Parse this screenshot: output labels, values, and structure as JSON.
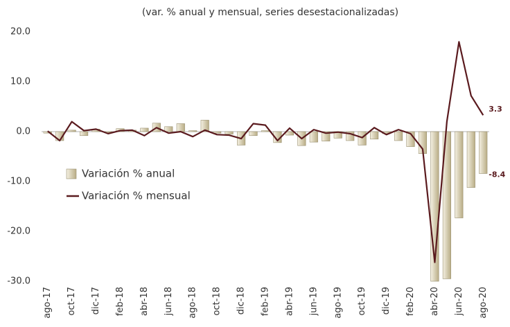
{
  "chart_data": {
    "type": "bar+line",
    "title": "(var. % anual y mensual, series desestacionalizadas)",
    "categories": [
      "ago-17",
      null,
      "oct-17",
      null,
      "dic-17",
      null,
      "feb-18",
      null,
      "abr-18",
      null,
      "jun-18",
      null,
      "ago-18",
      null,
      "oct-18",
      null,
      "dic-18",
      null,
      "feb-19",
      null,
      "abr-19",
      null,
      "jun-19",
      null,
      "ago-19",
      null,
      "oct-19",
      null,
      "dic-19",
      null,
      "feb-20",
      null,
      "abr-20",
      null,
      "jun-20",
      null,
      "ago-20"
    ],
    "series": [
      {
        "name": "Variación % anual",
        "type": "bar",
        "color": "#d9d0b2",
        "values": [
          -0.3,
          -1.8,
          0.3,
          -0.8,
          0.5,
          -0.2,
          0.6,
          0.3,
          0.7,
          1.7,
          1.0,
          1.6,
          0.2,
          2.3,
          -0.3,
          -0.5,
          -2.7,
          -0.8,
          0.2,
          -2.2,
          -0.7,
          -2.8,
          -2.1,
          -1.9,
          -1.3,
          -1.8,
          -2.7,
          -1.5,
          -0.4,
          -1.8,
          -3.0,
          -4.4,
          -30.0,
          -29.5,
          -17.3,
          -11.2,
          -8.4
        ],
        "value_labels": [
          null,
          null,
          null,
          null,
          null,
          null,
          null,
          null,
          null,
          null,
          null,
          null,
          null,
          null,
          null,
          null,
          null,
          null,
          null,
          null,
          null,
          null,
          null,
          null,
          null,
          null,
          null,
          null,
          null,
          null,
          null,
          null,
          null,
          null,
          null,
          null,
          "-8.4"
        ]
      },
      {
        "name": "Variación % mensual",
        "type": "line",
        "color": "#5a1a1e",
        "values": [
          0.1,
          -1.8,
          2.0,
          0.2,
          0.5,
          -0.4,
          0.2,
          0.3,
          -0.8,
          0.8,
          -0.3,
          0.0,
          -1.0,
          0.3,
          -0.6,
          -0.7,
          -1.4,
          1.6,
          1.3,
          -1.8,
          0.7,
          -1.4,
          0.4,
          -0.3,
          -0.1,
          -0.4,
          -1.2,
          0.8,
          -0.6,
          0.4,
          -0.4,
          -3.5,
          -26.2,
          2.0,
          18.0,
          7.2,
          3.3
        ],
        "value_labels": [
          null,
          null,
          null,
          null,
          null,
          null,
          null,
          null,
          null,
          null,
          null,
          null,
          null,
          null,
          null,
          null,
          null,
          null,
          null,
          null,
          null,
          null,
          null,
          null,
          null,
          null,
          null,
          null,
          null,
          null,
          null,
          null,
          null,
          null,
          null,
          null,
          "3.3"
        ]
      }
    ],
    "ylim": [
      -30,
      20
    ],
    "yticks": [
      {
        "value": -30,
        "label": "-30.0"
      },
      {
        "value": -20,
        "label": "-20.0"
      },
      {
        "value": -10,
        "label": "-10.0"
      },
      {
        "value": 0,
        "label": "0.0"
      },
      {
        "value": 10,
        "label": "10.0"
      },
      {
        "value": 20,
        "label": "20.0"
      }
    ],
    "legend": "left"
  }
}
